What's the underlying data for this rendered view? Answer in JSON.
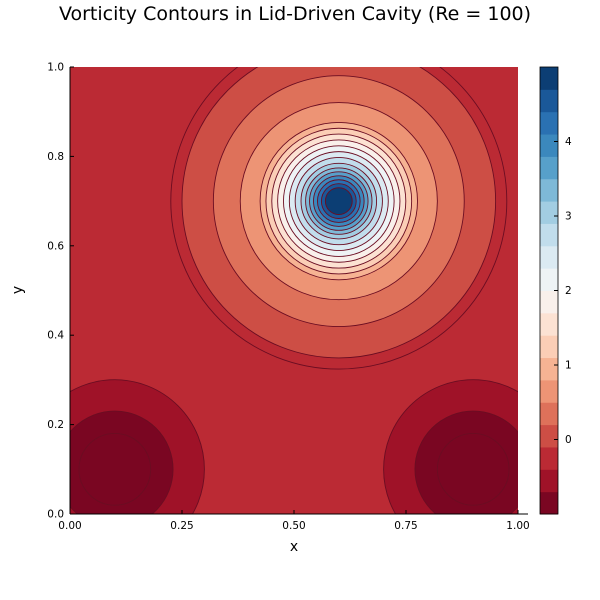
{
  "chart_data": {
    "type": "contour",
    "title": "Vorticity Contours in Lid-Driven Cavity (Re = 100)",
    "xlabel": "x",
    "ylabel": "y",
    "xlim": [
      0,
      1
    ],
    "ylim": [
      0,
      1
    ],
    "x_ticks": [
      "0.00",
      "0.25",
      "0.50",
      "0.75",
      "1.00"
    ],
    "x_tick_values": [
      0,
      0.25,
      0.5,
      0.75,
      1.0
    ],
    "y_ticks": [
      "0.0",
      "0.2",
      "0.4",
      "0.6",
      "0.8",
      "1.0"
    ],
    "y_tick_values": [
      0,
      0.2,
      0.4,
      0.6,
      0.8,
      1.0
    ],
    "background_level": -0.2,
    "features": [
      {
        "kind": "vortex",
        "center": [
          0.6,
          0.7
        ],
        "peak": 4.9,
        "radius_levels": [
          [
            0.375,
            -0.2
          ],
          [
            0.3,
            0.1
          ],
          [
            0.24,
            0.4
          ],
          [
            0.18,
            0.7
          ],
          [
            0.08,
            3.0
          ],
          [
            0.03,
            4.7
          ]
        ]
      },
      {
        "kind": "corner_eddy",
        "center": [
          0.1,
          0.1
        ],
        "radius_levels": [
          [
            0.2,
            -0.5
          ],
          [
            0.13,
            -0.75
          ],
          [
            0.08,
            -1.0
          ]
        ]
      },
      {
        "kind": "corner_eddy",
        "center": [
          0.9,
          0.1
        ],
        "radius_levels": [
          [
            0.2,
            -0.5
          ],
          [
            0.13,
            -0.75
          ],
          [
            0.08,
            -1.0
          ]
        ]
      }
    ],
    "colorbar": {
      "colormap": "RdBu",
      "min": -1.0,
      "max": 5.0,
      "levels": 20,
      "ticks": [
        "0",
        "1",
        "2",
        "3",
        "4"
      ],
      "tick_values": [
        0,
        1,
        2,
        3,
        4
      ]
    }
  }
}
